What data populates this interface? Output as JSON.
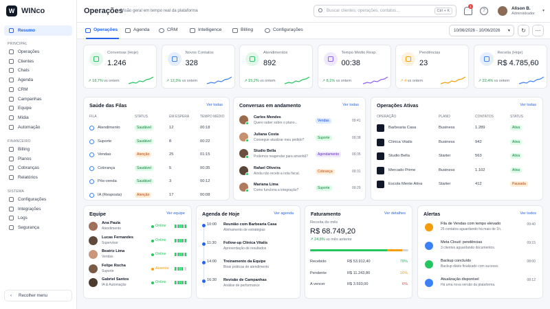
{
  "app": {
    "name": "WINco"
  },
  "sidebar": {
    "main": {
      "label": "Resumo"
    },
    "principal_heading": "PRINCIPAL",
    "principal": [
      {
        "label": "Operações"
      },
      {
        "label": "Clientes"
      },
      {
        "label": "Chats"
      },
      {
        "label": "Agenda"
      },
      {
        "label": "CRM"
      },
      {
        "label": "Campanhas"
      },
      {
        "label": "Equipe"
      },
      {
        "label": "Mídia"
      },
      {
        "label": "Automação"
      }
    ],
    "financeiro_heading": "FINANCEIRO",
    "financeiro": [
      {
        "label": "Billing"
      },
      {
        "label": "Planos"
      },
      {
        "label": "Cobranças"
      },
      {
        "label": "Relatórios"
      }
    ],
    "sistema_heading": "SISTEMA",
    "sistema": [
      {
        "label": "Configurações"
      },
      {
        "label": "Integrações"
      },
      {
        "label": "Logs"
      },
      {
        "label": "Segurança"
      }
    ],
    "collapse": "Recolher menu"
  },
  "header": {
    "title": "Operações",
    "subtitle": "Visão geral em tempo real da plataforma",
    "search_placeholder": "Buscar clientes, operações, contatos...",
    "search_shortcut": "Ctrl + K",
    "notifications": "1",
    "user_name": "Alison B.",
    "user_role": "Administrador"
  },
  "tabs": [
    {
      "label": "Operações"
    },
    {
      "label": "Agenda"
    },
    {
      "label": "CRM"
    },
    {
      "label": "Intelligence"
    },
    {
      "label": "Billing"
    },
    {
      "label": "Configurações"
    }
  ],
  "date_range": "10/06/2026 - 10/06/2026",
  "kpis": [
    {
      "label": "Conversas (Hoje)",
      "value": "1.246",
      "trend": "18,7%",
      "suffix": "vs ontem",
      "color": "#22c55e",
      "icon": "chat-icon"
    },
    {
      "label": "Novos Contatos",
      "value": "328",
      "trend": "12,3%",
      "suffix": "vs ontem",
      "color": "#3b82f6",
      "icon": "users-icon"
    },
    {
      "label": "Atendimentos",
      "value": "892",
      "trend": "15,2%",
      "suffix": "vs ontem",
      "color": "#22c55e",
      "icon": "check-circle-icon"
    },
    {
      "label": "Tempo Médio Resp.",
      "value": "00:38",
      "trend": "8,1%",
      "suffix": "vs ontem",
      "color": "#8b5cf6",
      "icon": "clock-icon"
    },
    {
      "label": "Pendências",
      "value": "23",
      "trend": "4",
      "suffix": "vs ontem",
      "color": "#f59e0b",
      "icon": "warning-icon"
    },
    {
      "label": "Receita (Hoje)",
      "value": "R$ 4.785,60",
      "trend": "22,4%",
      "suffix": "vs ontem",
      "color": "#3b82f6",
      "icon": "dollar-icon"
    }
  ],
  "queues": {
    "title": "Saúde das Filas",
    "link": "Ver todas",
    "headers": [
      "FILA",
      "STATUS",
      "EM ESPERA",
      "TEMPO MÉDIO"
    ],
    "rows": [
      {
        "name": "Atendimento",
        "status": "Saudável",
        "wait": "12",
        "time": "00:18",
        "tone": "green"
      },
      {
        "name": "Suporte",
        "status": "Saudável",
        "wait": "8",
        "time": "00:22",
        "tone": "green"
      },
      {
        "name": "Vendas",
        "status": "Atenção",
        "wait": "25",
        "time": "01:15",
        "tone": "orange"
      },
      {
        "name": "Cobrança",
        "status": "Saudável",
        "wait": "5",
        "time": "00:35",
        "tone": "green"
      },
      {
        "name": "Pós-venda",
        "status": "Saudável",
        "wait": "3",
        "time": "00:12",
        "tone": "green"
      },
      {
        "name": "IA (Resposta)",
        "status": "Atenção",
        "wait": "17",
        "time": "00:08",
        "tone": "orange"
      }
    ]
  },
  "conversations": {
    "title": "Conversas em andamento",
    "link": "Ver todas",
    "rows": [
      {
        "name": "Carlos Mendes",
        "msg": "Quero saber sobre o plano...",
        "tag": "Vendas",
        "time": "09:41",
        "tone": "blue"
      },
      {
        "name": "Juliana Costa",
        "msg": "Consegue atualizar meu pedido?",
        "tag": "Suporte",
        "time": "09:38",
        "tone": "green"
      },
      {
        "name": "Studio Bella",
        "msg": "Podemos reagendar para amanhã?",
        "tag": "Agendamento",
        "time": "09:35",
        "tone": "purple"
      },
      {
        "name": "Rafael Oliveira",
        "msg": "Ainda não recebi a nota fiscal.",
        "tag": "Cobrança",
        "time": "09:31",
        "tone": "orange"
      },
      {
        "name": "Mariana Lima",
        "msg": "Como funciona a integração?",
        "tag": "Suporte",
        "time": "09:29",
        "tone": "green"
      }
    ]
  },
  "operations": {
    "title": "Operações Ativas",
    "link": "Ver todas",
    "headers": [
      "OPERAÇÃO",
      "PLANO",
      "CONTATOS",
      "STATUS"
    ],
    "rows": [
      {
        "name": "Barbearia Casa",
        "plan": "Business",
        "contacts": "1.289",
        "status": "Ativa",
        "tone": "green"
      },
      {
        "name": "Clínica Vitalis",
        "plan": "Business",
        "contacts": "942",
        "status": "Ativa",
        "tone": "green"
      },
      {
        "name": "Studio Bella",
        "plan": "Starter",
        "contacts": "563",
        "status": "Ativa",
        "tone": "green"
      },
      {
        "name": "Mercado Prime",
        "plan": "Business",
        "contacts": "1.102",
        "status": "Ativa",
        "tone": "green"
      },
      {
        "name": "Escola Mente Ativa",
        "plan": "Starter",
        "contacts": "412",
        "status": "Pausada",
        "tone": "orange"
      }
    ]
  },
  "team": {
    "title": "Equipe",
    "link": "Ver equipe",
    "rows": [
      {
        "name": "Ana Paula",
        "role": "Atendimento",
        "status": "Online",
        "tone": "#22c55e"
      },
      {
        "name": "Lucas Fernandes",
        "role": "Supervisor",
        "status": "Online",
        "tone": "#22c55e"
      },
      {
        "name": "Beatriz Lima",
        "role": "Vendas",
        "status": "Online",
        "tone": "#22c55e"
      },
      {
        "name": "Felipe Rocha",
        "role": "Suporte",
        "status": "Ausente",
        "tone": "#f59e0b"
      },
      {
        "name": "Gabriel Santos",
        "role": "IA & Automação",
        "status": "Online",
        "tone": "#22c55e"
      }
    ]
  },
  "agenda": {
    "title": "Agenda de Hoje",
    "link": "Ver agenda",
    "rows": [
      {
        "time": "10:00",
        "title": "Reunião com Barbearia Casa",
        "desc": "Alinhamento de estratégias"
      },
      {
        "time": "11:30",
        "title": "Follow-up Clínica Vitalis",
        "desc": "Apresentação de resultados"
      },
      {
        "time": "14:00",
        "title": "Treinamento da Equipe",
        "desc": "Boas práticas de atendimento"
      },
      {
        "time": "16:30",
        "title": "Revisão de Campanhas",
        "desc": "Análise de performance"
      }
    ]
  },
  "billing": {
    "title": "Faturamento",
    "link": "Ver detalhes",
    "label": "Receita do mês",
    "value": "R$ 68.749,20",
    "trend": "24,8%",
    "trend_suffix": "vs mês anterior",
    "progress": {
      "received": 0.78,
      "pending": 0.16,
      "due": 0.06
    },
    "rows": [
      {
        "label": "Recebido",
        "value": "R$ 53.912,40",
        "pct": "78%",
        "color": "#22c55e"
      },
      {
        "label": "Pendente",
        "value": "R$ 11.243,80",
        "pct": "16%",
        "color": "#f59e0b"
      },
      {
        "label": "A vencer",
        "value": "R$ 3.593,00",
        "pct": "6%",
        "color": "#ef4444"
      }
    ]
  },
  "alerts": {
    "title": "Alertas",
    "link": "Ver todos",
    "rows": [
      {
        "title": "Fila de Vendas com tempo elevado",
        "desc": "25 contatos aguardando há mais de 1h.",
        "time": "09:40",
        "color": "#f59e0b",
        "icon": "warning-icon"
      },
      {
        "title": "Meta Cloud: pendências",
        "desc": "3 clientes aguardando documentos.",
        "time": "09:15",
        "color": "#3b82f6",
        "icon": "info-icon"
      },
      {
        "title": "Backup concluído",
        "desc": "Backup diário finalizado com sucesso.",
        "time": "08:00",
        "color": "#22c55e",
        "icon": "check-icon"
      },
      {
        "title": "Atualização disponível",
        "desc": "Há uma nova versão da plataforma.",
        "time": "08:12",
        "color": "#3b82f6",
        "icon": "info-icon"
      }
    ]
  }
}
